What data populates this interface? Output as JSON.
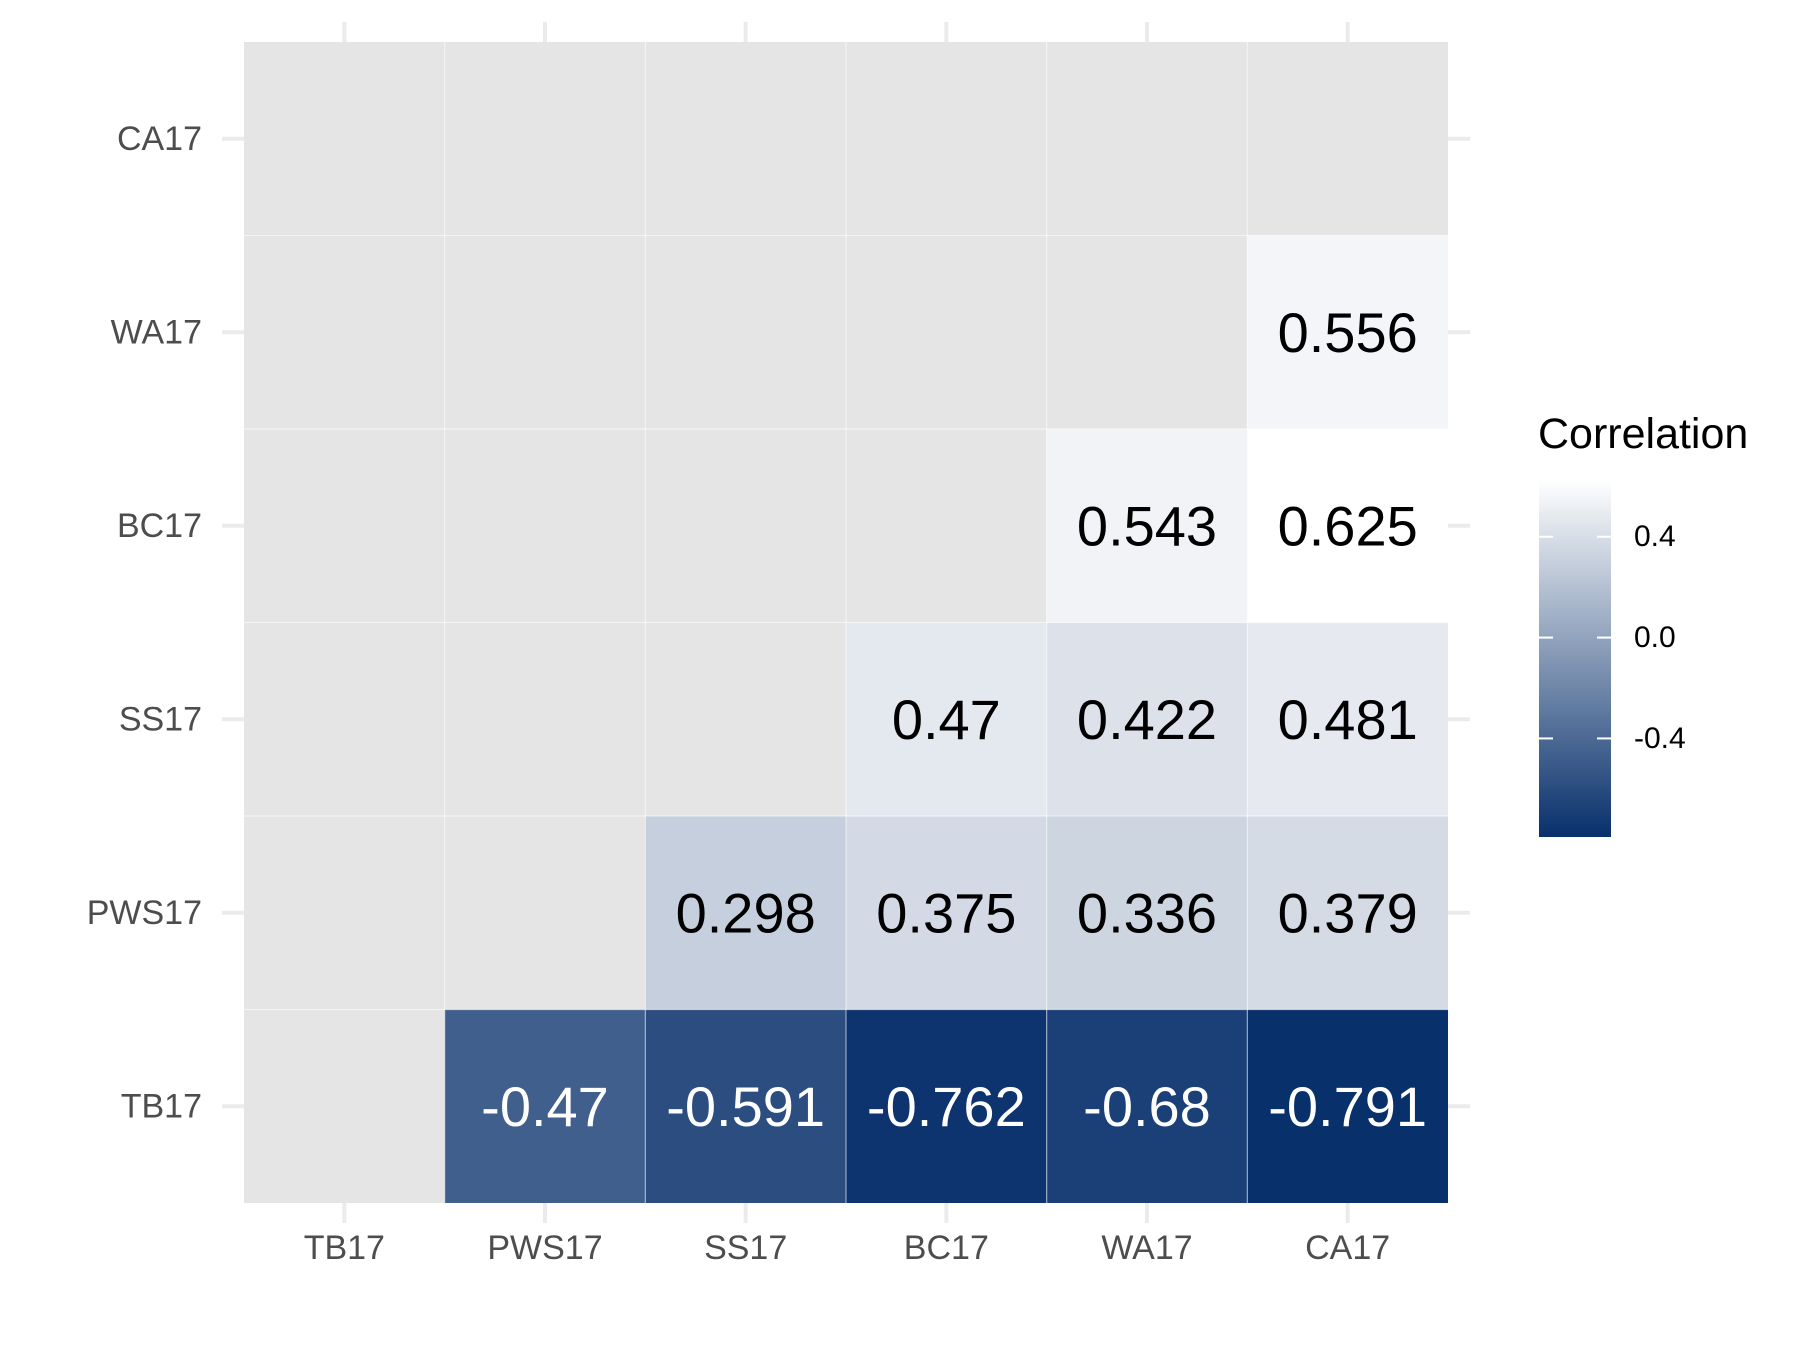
{
  "chart_data": {
    "type": "heatmap",
    "x_categories": [
      "TB17",
      "PWS17",
      "SS17",
      "BC17",
      "WA17",
      "CA17"
    ],
    "y_categories": [
      "TB17",
      "PWS17",
      "SS17",
      "BC17",
      "WA17",
      "CA17"
    ],
    "cells": [
      {
        "x": "PWS17",
        "y": "TB17",
        "value": -0.47,
        "label": "-0.47"
      },
      {
        "x": "SS17",
        "y": "TB17",
        "value": -0.591,
        "label": "-0.591"
      },
      {
        "x": "BC17",
        "y": "TB17",
        "value": -0.762,
        "label": "-0.762"
      },
      {
        "x": "WA17",
        "y": "TB17",
        "value": -0.68,
        "label": "-0.68"
      },
      {
        "x": "CA17",
        "y": "TB17",
        "value": -0.791,
        "label": "-0.791"
      },
      {
        "x": "SS17",
        "y": "PWS17",
        "value": 0.298,
        "label": "0.298"
      },
      {
        "x": "BC17",
        "y": "PWS17",
        "value": 0.375,
        "label": "0.375"
      },
      {
        "x": "WA17",
        "y": "PWS17",
        "value": 0.336,
        "label": "0.336"
      },
      {
        "x": "CA17",
        "y": "PWS17",
        "value": 0.379,
        "label": "0.379"
      },
      {
        "x": "BC17",
        "y": "SS17",
        "value": 0.47,
        "label": "0.47"
      },
      {
        "x": "WA17",
        "y": "SS17",
        "value": 0.422,
        "label": "0.422"
      },
      {
        "x": "CA17",
        "y": "SS17",
        "value": 0.481,
        "label": "0.481"
      },
      {
        "x": "WA17",
        "y": "BC17",
        "value": 0.543,
        "label": "0.543"
      },
      {
        "x": "CA17",
        "y": "BC17",
        "value": 0.625,
        "label": "0.625"
      },
      {
        "x": "CA17",
        "y": "WA17",
        "value": 0.556,
        "label": "0.556"
      }
    ],
    "color_scale": {
      "low": "#08306b",
      "high": "#ffffff",
      "domain": [
        -0.791,
        0.625
      ]
    },
    "panel_background": "#e5e5e5",
    "grid": true,
    "legend": {
      "title": "Correlation",
      "ticks": [
        {
          "value": 0.4,
          "label": "0.4"
        },
        {
          "value": 0.0,
          "label": "0.0"
        },
        {
          "value": -0.4,
          "label": "-0.4"
        }
      ],
      "position": "right"
    }
  }
}
